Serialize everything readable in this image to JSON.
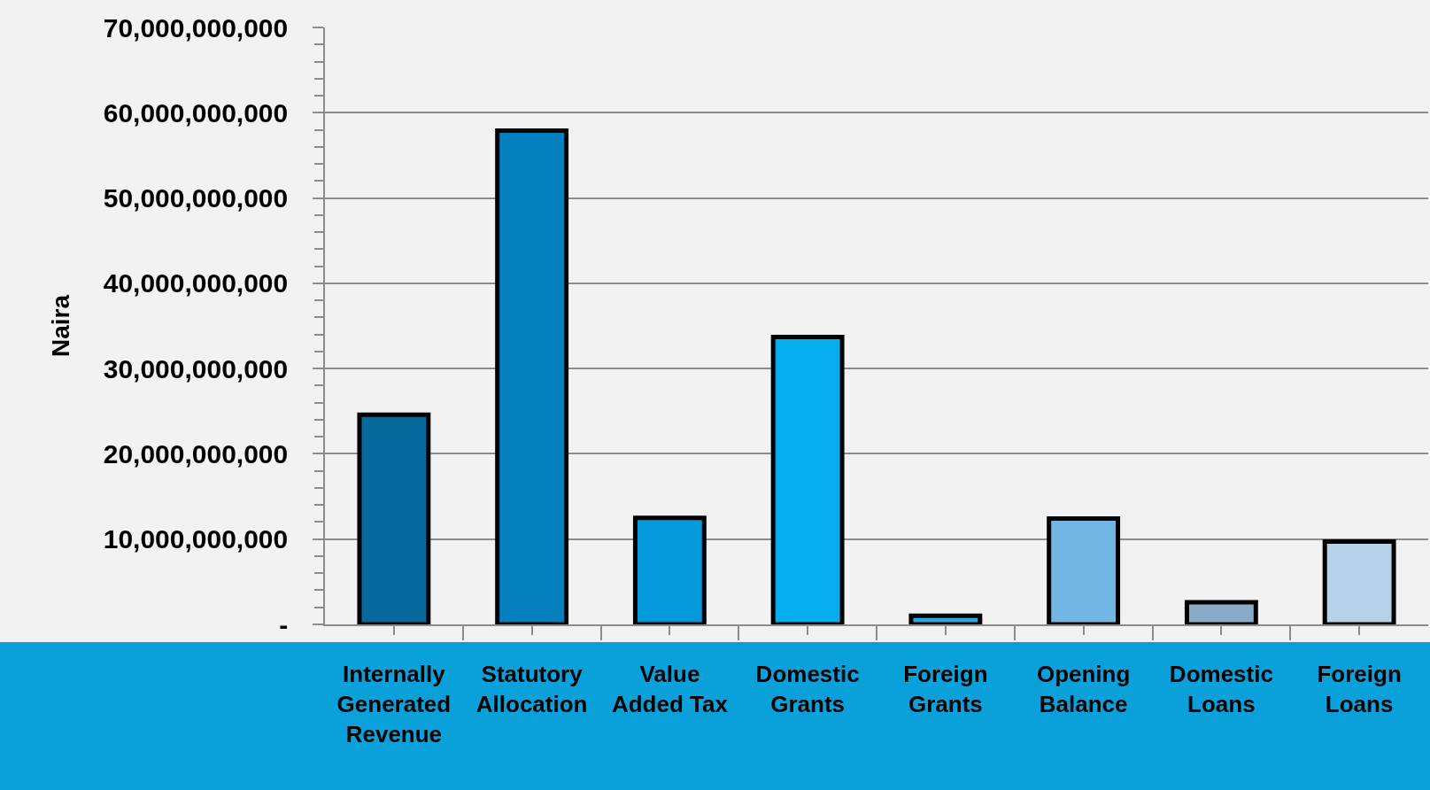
{
  "chart_data": {
    "type": "bar",
    "ylabel": "Naira",
    "categories": [
      "Internally Generated Revenue",
      "Statutory Allocation",
      "Value Added Tax",
      "Domestic Grants",
      "Foreign Grants",
      "Opening Balance",
      "Domestic Loans",
      "Foreign Loans"
    ],
    "values": [
      24600000000,
      57900000000,
      12500000000,
      33700000000,
      1000000000,
      12400000000,
      2600000000,
      9700000000
    ],
    "colors": [
      "#06689b",
      "#0381be",
      "#0499db",
      "#06aeef",
      "#2fa8e2",
      "#72b6e4",
      "#86acc9",
      "#b6d2e8"
    ],
    "ylim": [
      0,
      70000000000
    ],
    "yticks": [
      {
        "value": 0,
        "label": "-"
      },
      {
        "value": 2000000000,
        "label": null
      },
      {
        "value": 4000000000,
        "label": null
      },
      {
        "value": 6000000000,
        "label": null
      },
      {
        "value": 8000000000,
        "label": null
      },
      {
        "value": 10000000000,
        "label": "10,000,000,000"
      },
      {
        "value": 12000000000,
        "label": null
      },
      {
        "value": 14000000000,
        "label": null
      },
      {
        "value": 16000000000,
        "label": null
      },
      {
        "value": 18000000000,
        "label": null
      },
      {
        "value": 20000000000,
        "label": "20,000,000,000"
      },
      {
        "value": 22000000000,
        "label": null
      },
      {
        "value": 24000000000,
        "label": null
      },
      {
        "value": 26000000000,
        "label": null
      },
      {
        "value": 28000000000,
        "label": null
      },
      {
        "value": 30000000000,
        "label": "30,000,000,000"
      },
      {
        "value": 32000000000,
        "label": null
      },
      {
        "value": 34000000000,
        "label": null
      },
      {
        "value": 36000000000,
        "label": null
      },
      {
        "value": 38000000000,
        "label": null
      },
      {
        "value": 40000000000,
        "label": "40,000,000,000"
      },
      {
        "value": 42000000000,
        "label": null
      },
      {
        "value": 44000000000,
        "label": null
      },
      {
        "value": 46000000000,
        "label": null
      },
      {
        "value": 48000000000,
        "label": null
      },
      {
        "value": 50000000000,
        "label": "50,000,000,000"
      },
      {
        "value": 52000000000,
        "label": null
      },
      {
        "value": 54000000000,
        "label": null
      },
      {
        "value": 56000000000,
        "label": null
      },
      {
        "value": 58000000000,
        "label": null
      },
      {
        "value": 60000000000,
        "label": "60,000,000,000"
      },
      {
        "value": 62000000000,
        "label": null
      },
      {
        "value": 64000000000,
        "label": null
      },
      {
        "value": 66000000000,
        "label": null
      },
      {
        "value": 68000000000,
        "label": null
      },
      {
        "value": 70000000000,
        "label": "70,000,000,000"
      }
    ],
    "grid": "y"
  }
}
